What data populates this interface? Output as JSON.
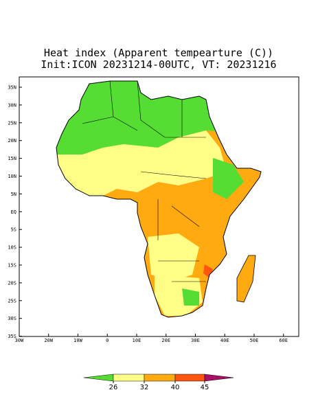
{
  "title": "Heat index (Apparent tempearture (C))",
  "subtitle": "Init:ICON 20231214-00UTC, VT: 20231216",
  "map": {
    "lon_labels": [
      "30W",
      "20W",
      "10W",
      "0",
      "10E",
      "20E",
      "30E",
      "40E",
      "50E",
      "60E"
    ],
    "lat_labels": [
      "35N",
      "30N",
      "25N",
      "20N",
      "15N",
      "10N",
      "5N",
      "EQ",
      "5S",
      "10S",
      "15S",
      "20S",
      "25S",
      "30S",
      "35S"
    ]
  },
  "colorbar": {
    "ticks": [
      26,
      32,
      40,
      45
    ],
    "colors": [
      "#55dd33",
      "#ffff88",
      "#ffaa11",
      "#ff5511",
      "#aa1166"
    ]
  }
}
